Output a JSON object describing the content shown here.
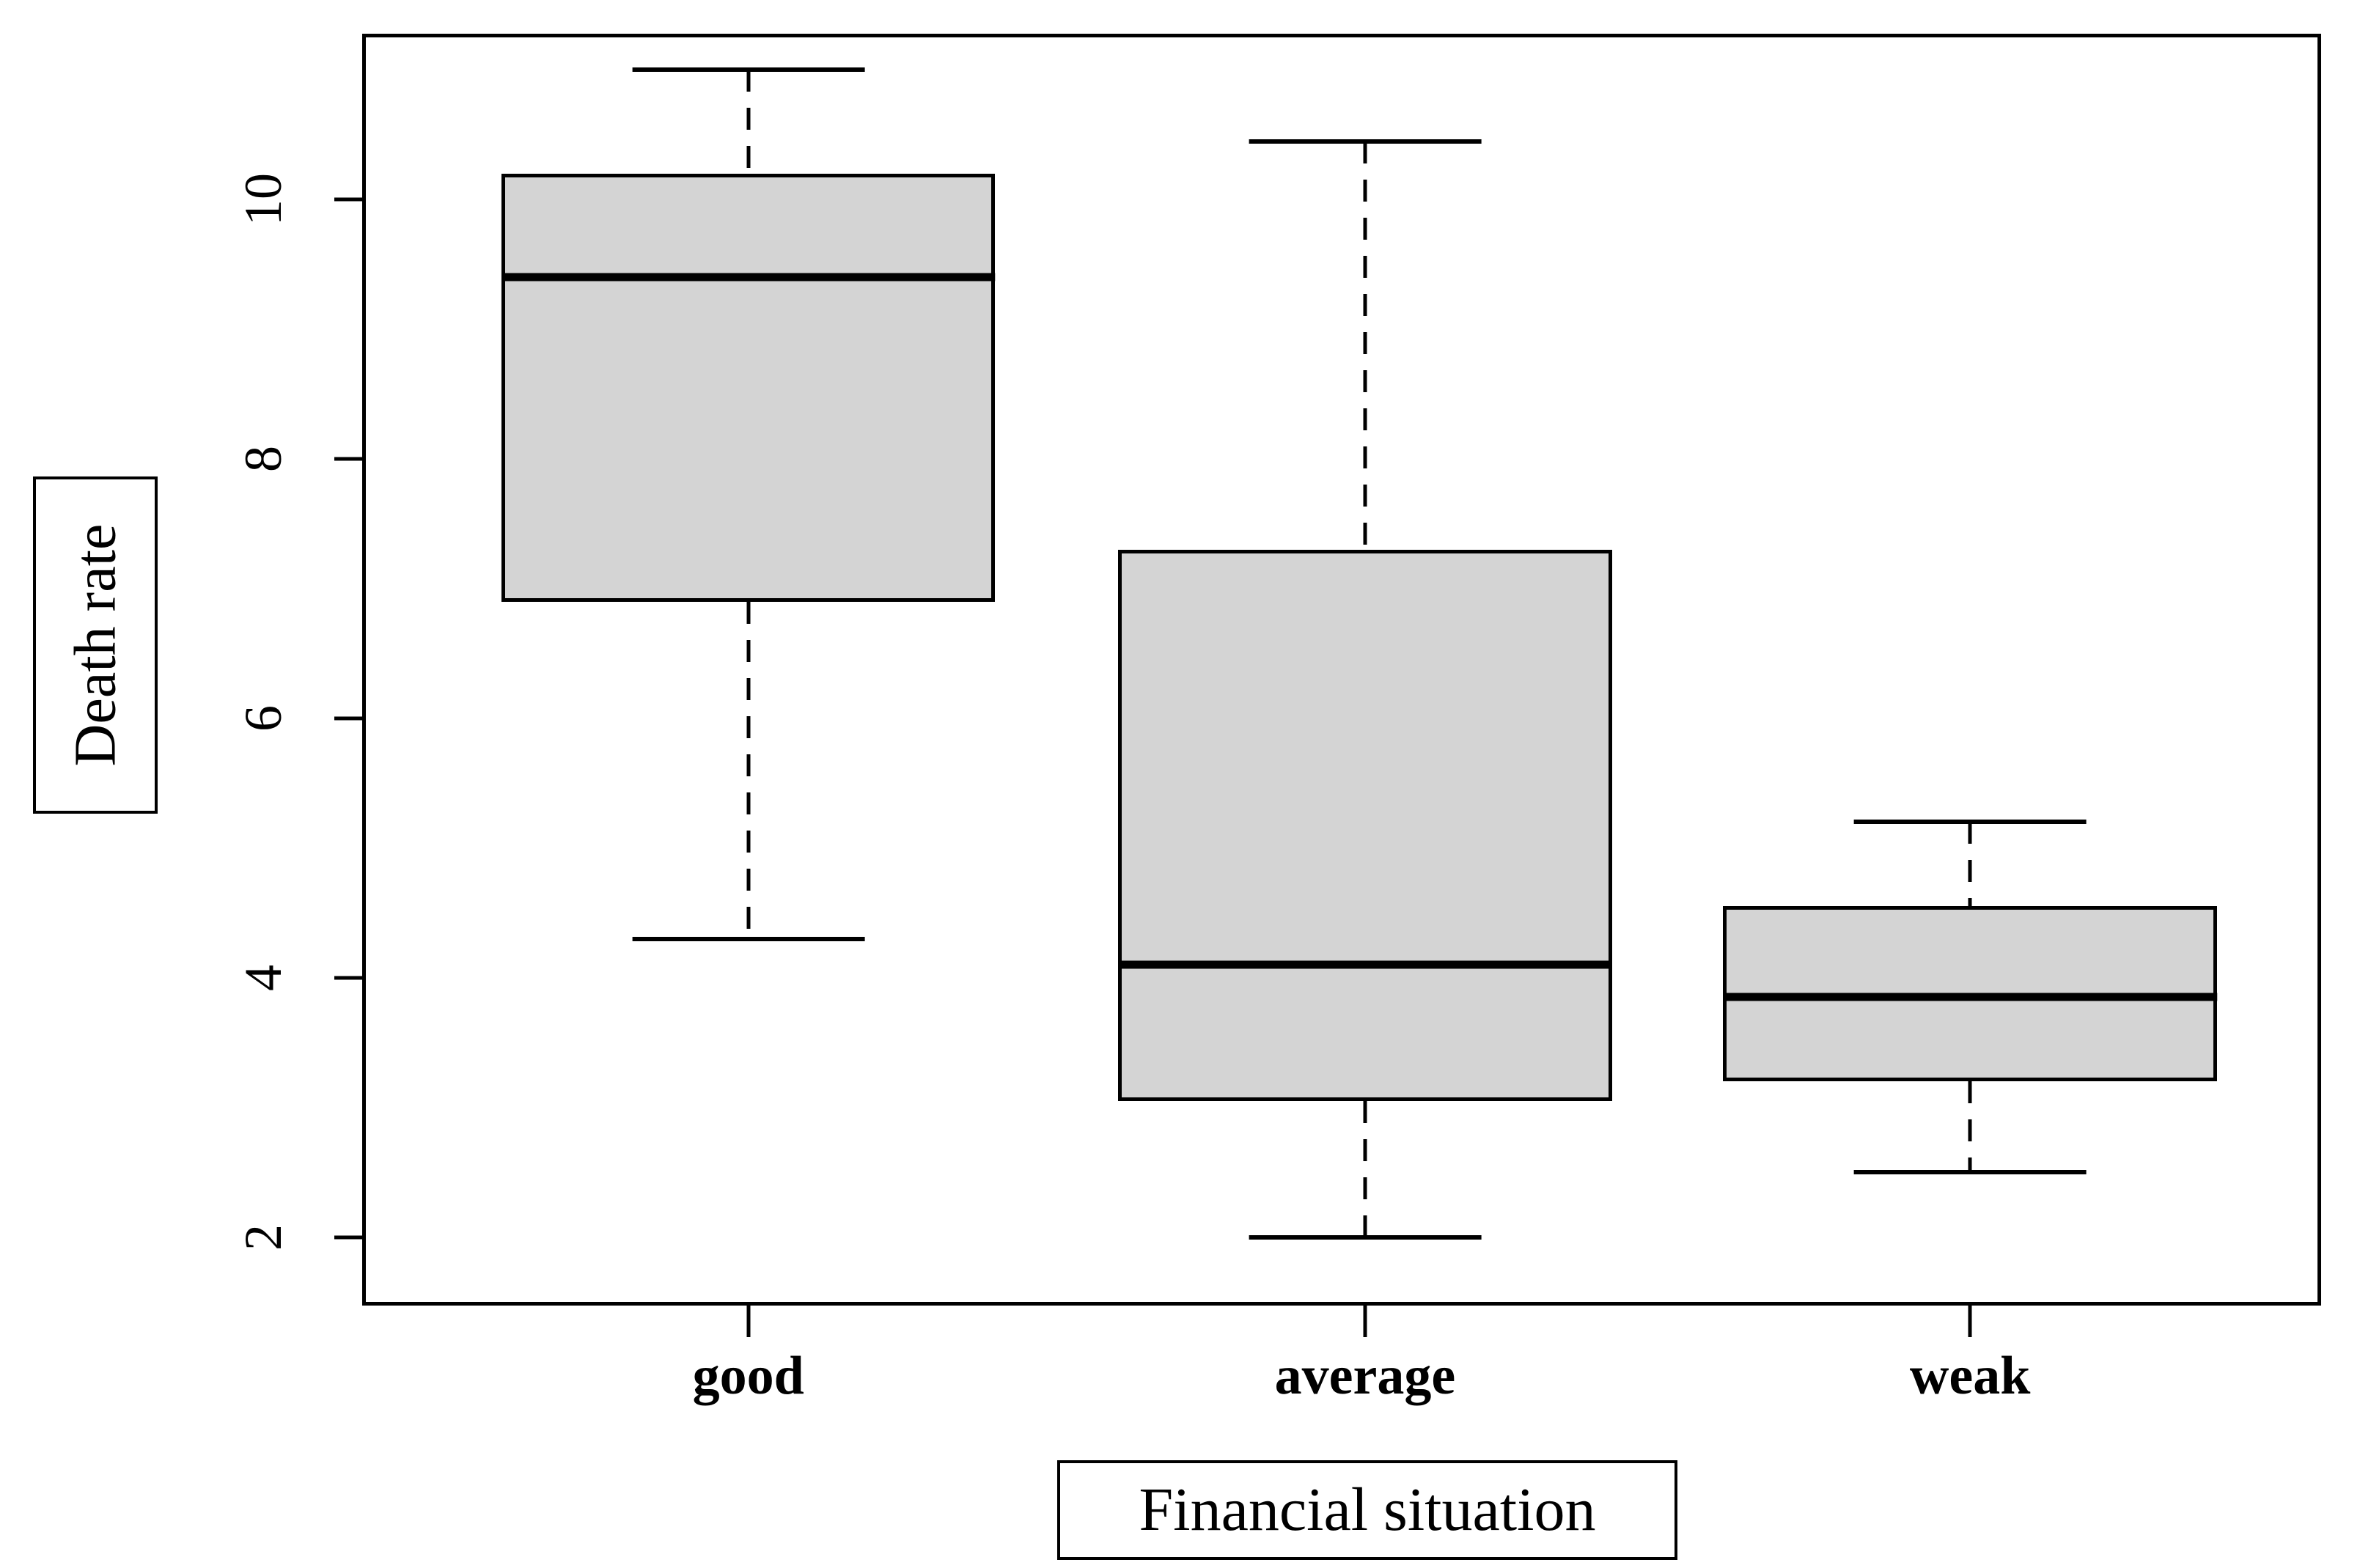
{
  "figure": {
    "background": "#ffffff"
  },
  "chart_data": {
    "type": "boxplot",
    "title": "",
    "xlabel": "Financial situation",
    "ylabel": "Death rate",
    "categories": [
      "good",
      "average",
      "weak"
    ],
    "series": [
      {
        "name": "good",
        "whisker_low": 4.3,
        "q1": 6.9,
        "median": 9.4,
        "q3": 10.2,
        "whisker_high": 11.0
      },
      {
        "name": "average",
        "whisker_low": 2.0,
        "q1": 3.05,
        "median": 4.1,
        "q3": 7.3,
        "whisker_high": 10.45
      },
      {
        "name": "weak",
        "whisker_low": 2.5,
        "q1": 3.2,
        "median": 3.85,
        "q3": 4.55,
        "whisker_high": 5.2
      }
    ],
    "y_ticks": [
      "2",
      "4",
      "6",
      "8",
      "10"
    ],
    "ylim": [
      1.5,
      11.25
    ],
    "grid": false,
    "legend": "none",
    "layout": {
      "box_centers_pct": [
        19.6,
        51.2,
        82.2
      ],
      "box_width_pct": 25.3,
      "cap_width_pct": 11.9
    },
    "colors": {
      "box_fill": "#d4d4d4",
      "stroke": "#000000",
      "background": "#ffffff"
    }
  }
}
